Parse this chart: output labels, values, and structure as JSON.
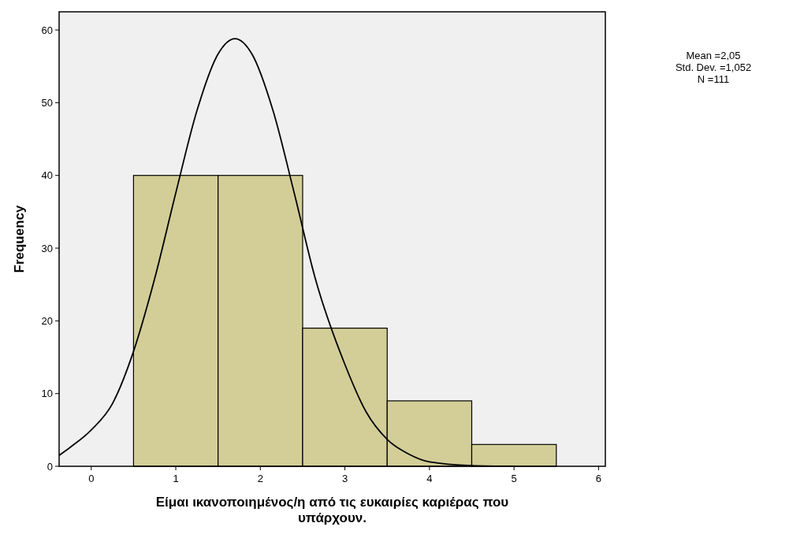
{
  "chart_data": {
    "type": "histogram",
    "xlabel": "Είμαι ικανοποιημένος/η από τις ευκαιρίες καριέρας που υπάρχουν.",
    "ylabel": "Frequency",
    "bins": [
      0.5,
      1.5,
      2.5,
      3.5,
      4.5,
      5.5
    ],
    "values": [
      40,
      40,
      19,
      9,
      3
    ],
    "color": "#d3ce97",
    "series": [
      {
        "type": "line",
        "color": "#000000",
        "x": [
          -0.38,
          -0.25,
          0,
          0.25,
          0.5,
          0.75,
          1,
          1.25,
          1.5,
          1.7,
          1.9,
          2.15,
          2.4,
          2.65,
          3,
          3.25,
          3.5,
          3.75,
          4,
          4.5,
          5
        ],
        "values": [
          1.5,
          2.6,
          5,
          8.6,
          15.8,
          25.8,
          37.6,
          48.9,
          56.7,
          58.8,
          56.7,
          48.9,
          37.6,
          25.8,
          14,
          7.5,
          3.7,
          1.7,
          0.6,
          0.1,
          0
        ]
      }
    ],
    "xlim": [
      -0.38,
      6.08
    ],
    "ylim": [
      0,
      62.5
    ],
    "xticks": [
      0,
      1,
      2,
      3,
      4,
      5,
      6
    ],
    "yticks": [
      0,
      10,
      20,
      30,
      40,
      50,
      60
    ],
    "marker": "none",
    "line_style": "solid",
    "grid": false,
    "annotations": [
      "Mean =2,05",
      "Std. Dev. =1,052",
      "N =111"
    ]
  }
}
